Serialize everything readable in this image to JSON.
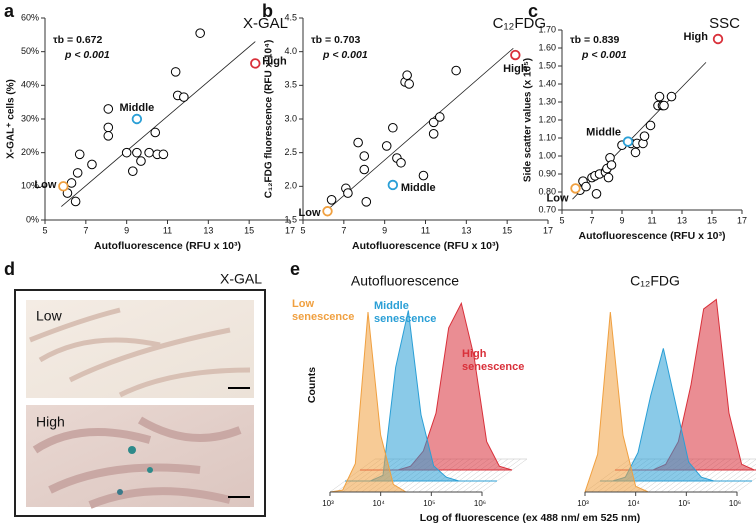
{
  "chart_data": [
    {
      "type": "scatter",
      "panel": "a",
      "title": "X-GAL",
      "stat": "τb = 0.672",
      "p": "p < 0.001",
      "xlabel": "Autofluorescence (RFU x 10³)",
      "ylabel": "X-GAL⁺ cells (%)",
      "xlim": [
        5,
        17
      ],
      "xticks": [
        5,
        7,
        9,
        11,
        13,
        15,
        17
      ],
      "ylim": [
        0,
        60
      ],
      "yticks": [
        {
          "value": 0,
          "label": "0%"
        },
        {
          "value": 10,
          "label": "10%"
        },
        {
          "value": 20,
          "label": "20%"
        },
        {
          "value": 30,
          "label": "30%"
        },
        {
          "value": 40,
          "label": "40%"
        },
        {
          "value": 50,
          "label": "50%"
        },
        {
          "value": 60,
          "label": "60%"
        }
      ],
      "trendline": {
        "x": [
          5.8,
          15.3
        ],
        "y": [
          4,
          53
        ]
      },
      "series": [
        {
          "color": "#000000",
          "x": [
            6.1,
            6.3,
            6.5,
            6.6,
            6.7,
            7.3,
            8.1,
            8.1,
            8.1,
            9.3,
            9.5,
            9.7,
            10.1,
            10.4,
            10.5,
            10.8,
            11.4,
            11.5,
            11.8,
            12.6,
            9.0
          ],
          "values": [
            8,
            11,
            5.5,
            14,
            19.5,
            16.5,
            33,
            27.5,
            25,
            14.5,
            20,
            17.5,
            20,
            26,
            19.5,
            19.5,
            44,
            37,
            36.5,
            55.5,
            20
          ]
        },
        {
          "name": "Low",
          "color": "#f0a040",
          "x": [
            5.9
          ],
          "values": [
            10
          ]
        },
        {
          "name": "Middle",
          "color": "#2a9fd6",
          "x": [
            9.5
          ],
          "values": [
            30
          ]
        },
        {
          "name": "High",
          "color": "#d9303a",
          "x": [
            15.3
          ],
          "values": [
            46.5
          ]
        }
      ]
    },
    {
      "type": "scatter",
      "panel": "b",
      "title": "C₁₂FDG",
      "stat": "τb = 0.703",
      "p": "p < 0.001",
      "xlabel": "Autofluorescence (RFU x 10³)",
      "ylabel": "C₁₂FDG fluorescence (RFU x 10⁴)",
      "xlim": [
        5,
        17
      ],
      "xticks": [
        5,
        7,
        9,
        11,
        13,
        15,
        17
      ],
      "ylim": [
        1.5,
        4.5
      ],
      "yticks": [
        1.5,
        {
          "value": 2,
          "label": "2.0"
        },
        2.5,
        {
          "value": 3,
          "label": "3.0"
        },
        3.5,
        {
          "value": 4,
          "label": "4.0"
        },
        4.5
      ],
      "trendline": {
        "x": [
          6,
          15.3
        ],
        "y": [
          1.6,
          4.05
        ]
      },
      "series": [
        {
          "color": "#000000",
          "x": [
            6.4,
            7.1,
            7.2,
            7.7,
            8.0,
            8.0,
            8.1,
            9.1,
            9.4,
            9.6,
            9.8,
            10.0,
            10.1,
            10.2,
            10.9,
            11.4,
            11.4,
            11.7,
            12.5
          ],
          "values": [
            1.8,
            1.97,
            1.9,
            2.65,
            2.45,
            2.25,
            1.77,
            2.6,
            2.87,
            2.42,
            2.35,
            3.55,
            3.65,
            3.52,
            2.16,
            2.95,
            2.78,
            3.03,
            3.72
          ]
        },
        {
          "name": "Low",
          "color": "#f0a040",
          "x": [
            6.2
          ],
          "values": [
            1.63
          ]
        },
        {
          "name": "Middle",
          "color": "#2a9fd6",
          "x": [
            9.4
          ],
          "values": [
            2.02
          ]
        },
        {
          "name": "High",
          "color": "#d9303a",
          "x": [
            15.4
          ],
          "values": [
            3.95
          ]
        }
      ]
    },
    {
      "type": "scatter",
      "panel": "c",
      "title": "SSC",
      "stat": "τb = 0.839",
      "p": "p < 0.001",
      "xlabel": "Autofluorescence (RFU x 10³)",
      "ylabel": "Side scatter values (x 10⁵)",
      "xlim": [
        5,
        17
      ],
      "xticks": [
        5,
        7,
        9,
        11,
        13,
        15,
        17
      ],
      "ylim": [
        0.7,
        1.7
      ],
      "yticks": [
        {
          "value": 0.7,
          "label": "0.70"
        },
        {
          "value": 0.8,
          "label": "0.80"
        },
        {
          "value": 0.9,
          "label": "0.90"
        },
        {
          "value": 1.0,
          "label": "1.00"
        },
        {
          "value": 1.1,
          "label": "1.10"
        },
        {
          "value": 1.2,
          "label": "1.20"
        },
        {
          "value": 1.3,
          "label": "1.30"
        },
        {
          "value": 1.4,
          "label": "1.40"
        },
        {
          "value": 1.5,
          "label": "1.50"
        },
        {
          "value": 1.6,
          "label": "1.60"
        },
        {
          "value": 1.7,
          "label": "1.70"
        }
      ],
      "trendline": {
        "x": [
          5.7,
          14.6
        ],
        "y": [
          0.76,
          1.52
        ]
      },
      "series": [
        {
          "color": "#000000",
          "x": [
            6.2,
            6.4,
            6.6,
            7.0,
            7.2,
            7.3,
            7.5,
            7.9,
            8.0,
            8.1,
            8.2,
            8.3,
            9.0,
            9.6,
            9.9,
            10.0,
            10.4,
            10.5,
            10.9,
            11.4,
            11.5,
            11.7,
            11.8,
            12.3
          ],
          "values": [
            0.81,
            0.86,
            0.83,
            0.88,
            0.89,
            0.79,
            0.9,
            0.91,
            0.93,
            0.88,
            0.99,
            0.95,
            1.06,
            1.07,
            1.02,
            1.07,
            1.07,
            1.11,
            1.17,
            1.28,
            1.33,
            1.28,
            1.28,
            1.33
          ]
        },
        {
          "name": "Low",
          "color": "#f0a040",
          "x": [
            5.9
          ],
          "values": [
            0.82
          ]
        },
        {
          "name": "Middle",
          "color": "#2a9fd6",
          "x": [
            9.4
          ],
          "values": [
            1.08
          ]
        },
        {
          "name": "High",
          "color": "#d9303a",
          "x": [
            15.4
          ],
          "values": [
            1.65
          ]
        }
      ]
    },
    {
      "type": "image",
      "panel": "d",
      "title": "X-GAL",
      "labels": [
        "Low",
        "High"
      ]
    },
    {
      "type": "area",
      "panel": "e",
      "title": "Autofluorescence",
      "ylabel": "Counts",
      "xlabel": "Log of fluorescence (ex 488 nm/ em 525 nm)",
      "xscale": "log",
      "xlim": [
        1000,
        1000000
      ],
      "xticks": [
        {
          "value": 1000,
          "label": "10³"
        },
        {
          "value": 10000,
          "label": "10⁴"
        },
        {
          "value": 100000,
          "label": "10⁵"
        },
        {
          "value": 1000000,
          "label": "10⁶"
        }
      ],
      "x": [
        1000,
        1778,
        3162,
        5623,
        10000,
        17783,
        31623,
        56234,
        100000,
        177828,
        316228,
        562341,
        1000000
      ],
      "series": [
        {
          "name": "Low senescence",
          "color": "#f0a040",
          "values": [
            0,
            1,
            15,
            95,
            30,
            4,
            0,
            0,
            0,
            0,
            0,
            0,
            0
          ]
        },
        {
          "name": "Middle senescence",
          "color": "#2a9fd6",
          "values": [
            0,
            0,
            0,
            3,
            60,
            90,
            35,
            8,
            2,
            0,
            0,
            0,
            0
          ]
        },
        {
          "name": "High senescence",
          "color": "#d9303a",
          "values": [
            0,
            0,
            0,
            0,
            2,
            10,
            30,
            75,
            88,
            60,
            15,
            2,
            0
          ]
        }
      ]
    },
    {
      "type": "area",
      "title": "C₁₂FDG",
      "xscale": "log",
      "xlim": [
        1000,
        1000000
      ],
      "xticks": [
        {
          "value": 1000,
          "label": "10³"
        },
        {
          "value": 10000,
          "label": "10⁴"
        },
        {
          "value": 100000,
          "label": "10⁵"
        },
        {
          "value": 1000000,
          "label": "10⁶"
        }
      ],
      "x": [
        1000,
        1778,
        3162,
        5623,
        10000,
        17783,
        31623,
        56234,
        100000,
        177828,
        316228,
        562341,
        1000000
      ],
      "series": [
        {
          "color": "#f0a040",
          "values": [
            0,
            20,
            95,
            30,
            3,
            0,
            0,
            0,
            0,
            0,
            0,
            0,
            0
          ]
        },
        {
          "color": "#2a9fd6",
          "values": [
            0,
            0,
            2,
            15,
            45,
            70,
            40,
            10,
            2,
            0,
            0,
            0,
            0
          ]
        },
        {
          "color": "#d9303a",
          "values": [
            0,
            0,
            0,
            0,
            3,
            15,
            45,
            85,
            90,
            30,
            3,
            0,
            0
          ]
        }
      ]
    }
  ]
}
